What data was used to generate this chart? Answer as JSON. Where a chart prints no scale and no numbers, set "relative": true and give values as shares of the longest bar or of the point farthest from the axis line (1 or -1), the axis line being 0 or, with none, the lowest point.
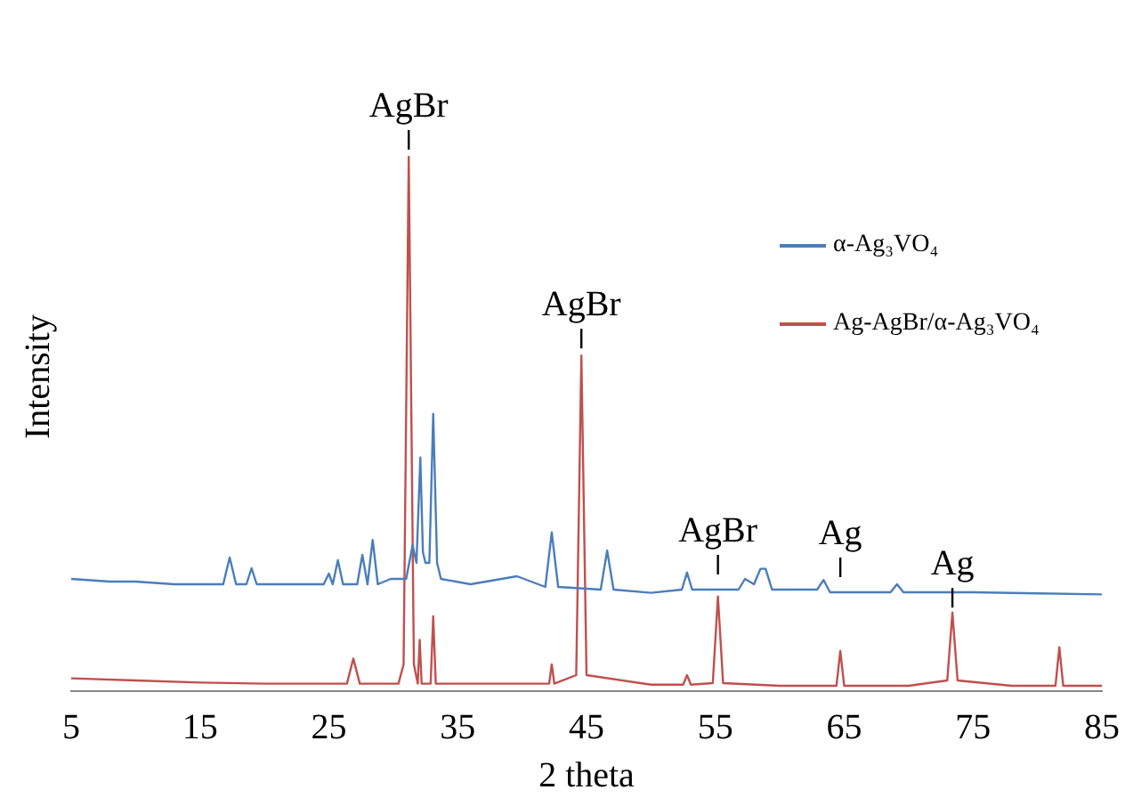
{
  "chart_data": {
    "type": "line",
    "xlabel": "2 theta",
    "ylabel": "Intensity",
    "relative": true,
    "xlim": [
      5,
      85
    ],
    "xticks": [
      5,
      15,
      25,
      35,
      45,
      55,
      65,
      75,
      85
    ],
    "grid": false,
    "legend": "top right",
    "marker": "none",
    "line_style": "solid",
    "series": [
      {
        "name": "α-Ag₃VO₄",
        "color": "#4a7ebb",
        "x": [
          5,
          8,
          10,
          13,
          16.8,
          17.3,
          17.8,
          18.6,
          19.0,
          19.4,
          22,
          24.6,
          25.0,
          25.3,
          25.7,
          26.1,
          27.2,
          27.6,
          28.0,
          28.4,
          28.8,
          29.8,
          31.0,
          31.5,
          31.8,
          32.1,
          32.3,
          32.5,
          32.8,
          33.1,
          33.4,
          33.7,
          36,
          39.6,
          41.8,
          42.3,
          42.8,
          46.1,
          46.6,
          47.1,
          50,
          52.4,
          52.8,
          53.2,
          56.8,
          57.3,
          58.0,
          58.5,
          58.9,
          59.4,
          62.9,
          63.4,
          63.9,
          68.6,
          69.1,
          69.6,
          75,
          80,
          85
        ],
        "values": [
          0.21,
          0.205,
          0.205,
          0.2,
          0.2,
          0.25,
          0.2,
          0.2,
          0.23,
          0.2,
          0.2,
          0.2,
          0.22,
          0.2,
          0.245,
          0.2,
          0.2,
          0.255,
          0.2,
          0.283,
          0.2,
          0.21,
          0.21,
          0.273,
          0.24,
          0.437,
          0.26,
          0.24,
          0.24,
          0.519,
          0.24,
          0.21,
          0.2,
          0.215,
          0.195,
          0.297,
          0.195,
          0.19,
          0.263,
          0.19,
          0.184,
          0.19,
          0.222,
          0.19,
          0.19,
          0.21,
          0.2,
          0.229,
          0.229,
          0.19,
          0.19,
          0.208,
          0.185,
          0.185,
          0.2,
          0.185,
          0.185,
          0.183,
          0.181
        ]
      },
      {
        "name": "Ag-AgBr/α-Ag₃VO₄",
        "color": "#c0504d",
        "x": [
          5,
          10,
          15,
          20,
          26.4,
          26.9,
          27.4,
          30.4,
          30.8,
          31.2,
          31.6,
          31.9,
          32.05,
          32.2,
          32.9,
          33.1,
          33.3,
          36,
          42.1,
          42.3,
          42.5,
          44.2,
          44.6,
          45.0,
          50,
          52.5,
          52.8,
          53.1,
          54.8,
          55.2,
          55.6,
          60,
          64.4,
          64.7,
          65.0,
          70,
          73.0,
          73.4,
          73.8,
          78,
          81.4,
          81.7,
          82.0,
          85
        ],
        "values": [
          0.024,
          0.02,
          0.016,
          0.014,
          0.014,
          0.061,
          0.014,
          0.014,
          0.05,
          1.0,
          0.05,
          0.014,
          0.096,
          0.014,
          0.014,
          0.14,
          0.014,
          0.014,
          0.014,
          0.05,
          0.014,
          0.03,
          0.628,
          0.03,
          0.012,
          0.012,
          0.03,
          0.012,
          0.015,
          0.177,
          0.015,
          0.01,
          0.01,
          0.075,
          0.01,
          0.01,
          0.02,
          0.147,
          0.02,
          0.01,
          0.01,
          0.082,
          0.01,
          0.01
        ]
      }
    ],
    "annotations": [
      {
        "text": "AgBr",
        "x": 31.2,
        "y": 1.0
      },
      {
        "text": "AgBr",
        "x": 44.6,
        "y": 0.628
      },
      {
        "text": "AgBr",
        "x": 55.2,
        "y": 0.205
      },
      {
        "text": "Ag",
        "x": 64.7,
        "y": 0.2
      },
      {
        "text": "Ag",
        "x": 73.4,
        "y": 0.143
      }
    ]
  }
}
